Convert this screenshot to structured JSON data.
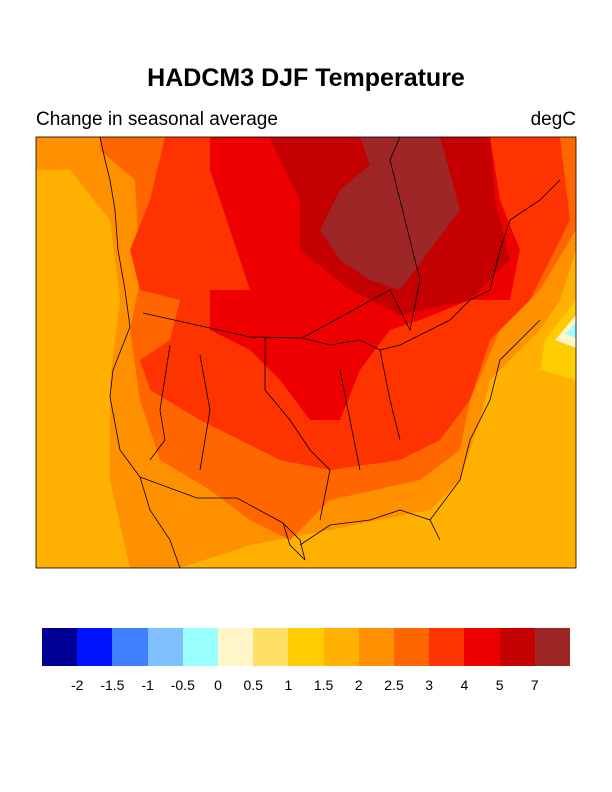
{
  "title": "HADCM3 DJF Temperature",
  "left_subtitle": "Change in seasonal average",
  "right_subtitle": "degC",
  "colorbar": {
    "labels": [
      "-2",
      "-1.5",
      "-1",
      "-0.5",
      "0",
      "0.5",
      "1",
      "1.5",
      "2",
      "2.5",
      "3",
      "4",
      "5",
      "7"
    ],
    "colors": [
      "#000096",
      "#0014FF",
      "#3F80FF",
      "#80BFFF",
      "#99FFFF",
      "#FFF5C8",
      "#FFE066",
      "#FFCC00",
      "#FFB000",
      "#FF9000",
      "#FF6600",
      "#FF3300",
      "#EE0000",
      "#C40000",
      "#9E2626"
    ]
  },
  "map": {
    "region": "North America",
    "variable": "temperature change",
    "dominant_levels": [
      "2",
      "2.5",
      "3",
      "4",
      "5",
      "7"
    ]
  }
}
